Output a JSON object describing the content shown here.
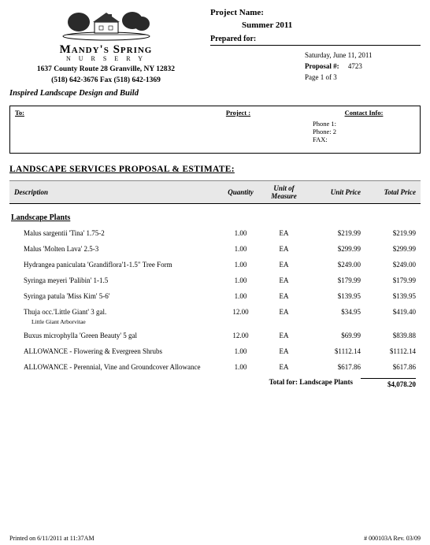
{
  "company": {
    "name": "Mandy's Spring",
    "sub": "N U R S E R Y",
    "address": "1637 County Route 28  Granville, NY 12832",
    "phones": "(518) 642-3676   Fax (518) 642-1369",
    "tagline": "Inspired Landscape Design and Build"
  },
  "project": {
    "name_label": "Project Name:",
    "name_value": "Summer 2011",
    "prepared_label": "Prepared for:",
    "date": "Saturday, June 11, 2011",
    "proposal_label": "Proposal #:",
    "proposal_no": "4723",
    "page": "Page 1 of 3"
  },
  "infobox": {
    "to_label": "To:",
    "project_label": "Project :",
    "contact_label": "Contact Info:",
    "phone1": "Phone 1:",
    "phone2": "Phone: 2",
    "fax": "FAX:"
  },
  "section_title": "LANDSCAPE SERVICES PROPOSAL & ESTIMATE:",
  "columns": {
    "desc": "Description",
    "qty": "Quantity",
    "uom": "Unit of Measure",
    "unit": "Unit Price",
    "total": "Total Price"
  },
  "category": "Landscape Plants",
  "rows": [
    {
      "desc": "Malus sargentii 'Tina' 1.75-2",
      "qty": "1.00",
      "uom": "EA",
      "unit": "$219.99",
      "total": "$219.99"
    },
    {
      "desc": "Malus 'Molten Lava' 2.5-3",
      "qty": "1.00",
      "uom": "EA",
      "unit": "$299.99",
      "total": "$299.99"
    },
    {
      "desc": "Hydrangea paniculata 'Grandiflora'1-1.5\" Tree Form",
      "qty": "1.00",
      "uom": "EA",
      "unit": "$249.00",
      "total": "$249.00"
    },
    {
      "desc": "Syringa meyeri 'Palibin'  1-1.5",
      "qty": "1.00",
      "uom": "EA",
      "unit": "$179.99",
      "total": "$179.99"
    },
    {
      "desc": "Syringa patula 'Miss Kim' 5-6'",
      "qty": "1.00",
      "uom": "EA",
      "unit": "$139.95",
      "total": "$139.95"
    },
    {
      "desc": "Thuja occ.'Little Giant' 3 gal.",
      "qty": "12.00",
      "uom": "EA",
      "unit": "$34.95",
      "total": "$419.40",
      "note": "Little Giant Arborvitae"
    },
    {
      "desc": "Buxus microphylla 'Green Beauty' 5 gal",
      "qty": "12.00",
      "uom": "EA",
      "unit": "$69.99",
      "total": "$839.88"
    },
    {
      "desc": "ALLOWANCE - Flowering & Evergreen Shrubs",
      "qty": "1.00",
      "uom": "EA",
      "unit": "$1112.14",
      "total": "$1112.14"
    },
    {
      "desc": "ALLOWANCE - Perennial, Vine and Groundcover Allowance",
      "qty": "1.00",
      "uom": "EA",
      "unit": "$617.86",
      "total": "$617.86"
    }
  ],
  "subtotal": {
    "label": "Total for: Landscape Plants",
    "amount": "$4,078.20"
  },
  "footer": {
    "left": "Printed on 6/11/2011 at 11:37AM",
    "right": "# 000103A Rev. 03/09"
  }
}
